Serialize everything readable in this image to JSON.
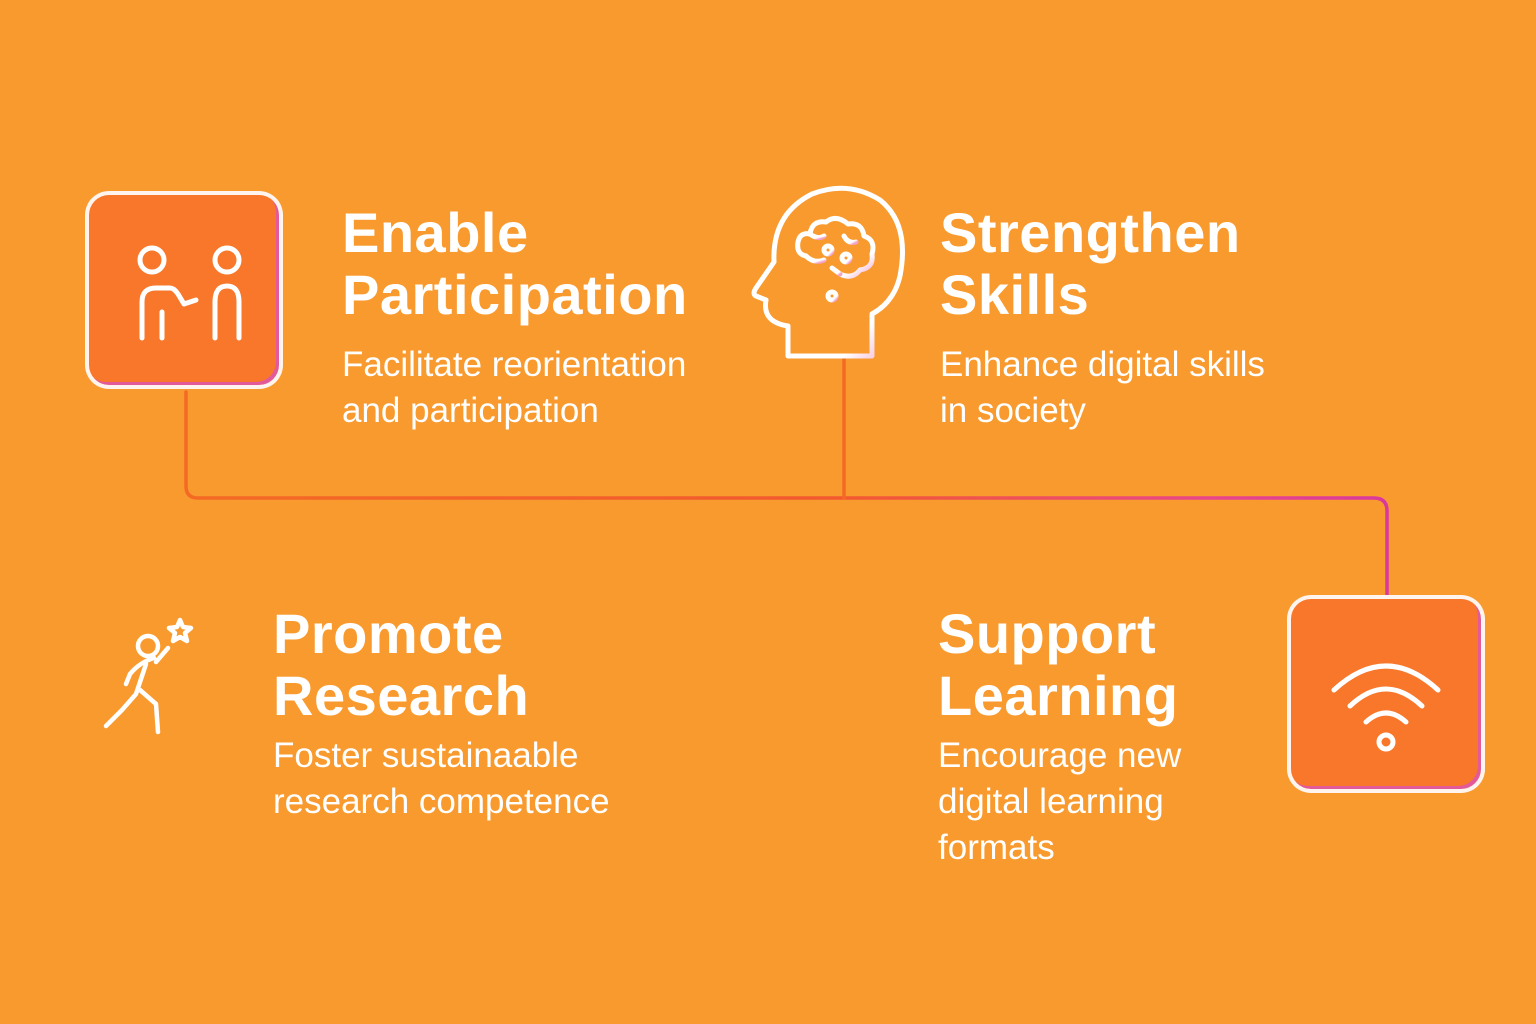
{
  "colors": {
    "background": "#f99a2e",
    "icon_box_fill": "#f8772a",
    "connector_orange": "#f46a24",
    "connector_pink": "#e0449a",
    "text": "#ffffff"
  },
  "items": [
    {
      "icon": "people-helping-icon",
      "title": "Enable\nParticipation",
      "description": "Facilitate reorientation\nand participation"
    },
    {
      "icon": "head-brain-icon",
      "title": "Strengthen\nSkills",
      "description": "Enhance  digital skills\nin society"
    },
    {
      "icon": "person-reaching-star-icon",
      "title": "Promote\nResearch",
      "description": "Foster sustainaable\nresearch competence"
    },
    {
      "icon": "wifi-icon",
      "title": "Support\nLearning",
      "description": "Encourage new\ndigital learning\nformats"
    }
  ]
}
